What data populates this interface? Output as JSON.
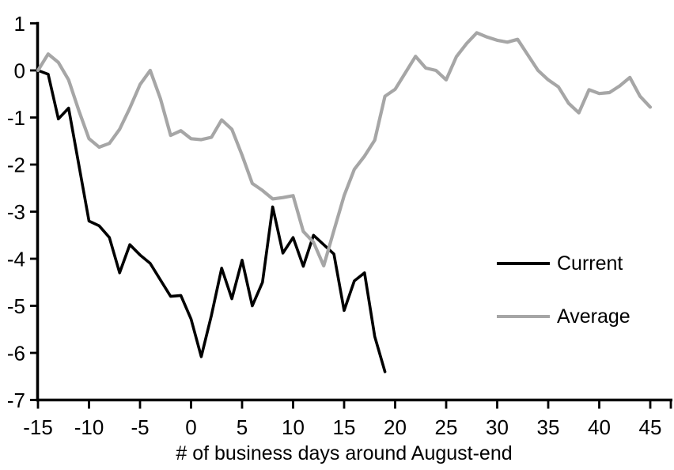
{
  "chart_data": {
    "type": "line",
    "title": "",
    "xlabel": "# of business days around August-end",
    "ylabel": "",
    "xlim": [
      -15,
      45
    ],
    "ylim": [
      -7,
      1
    ],
    "x_ticks": [
      -15,
      -10,
      -5,
      0,
      5,
      10,
      15,
      20,
      25,
      30,
      35,
      40,
      45
    ],
    "y_ticks": [
      1,
      0,
      -1,
      -2,
      -3,
      -4,
      -5,
      -6,
      -7
    ],
    "grid": false,
    "legend_position": "right-middle",
    "axis_color": "#000000",
    "series": [
      {
        "name": "Current",
        "color": "#000000",
        "stroke_width": 3.6,
        "x": [
          -15,
          -14,
          -13,
          -12,
          -11,
          -10,
          -9,
          -8,
          -7,
          -6,
          -5,
          -4,
          -3,
          -2,
          -1,
          0,
          1,
          2,
          3,
          4,
          5,
          6,
          7,
          8,
          9,
          10,
          11,
          12,
          13,
          14,
          15,
          16,
          17,
          18,
          19
        ],
        "values": [
          0,
          -0.08,
          -1.03,
          -0.8,
          -2.0,
          -3.2,
          -3.3,
          -3.55,
          -4.3,
          -3.7,
          -3.92,
          -4.1,
          -4.45,
          -4.8,
          -4.78,
          -5.28,
          -6.08,
          -5.2,
          -4.2,
          -4.85,
          -4.03,
          -5.0,
          -4.5,
          -2.9,
          -3.88,
          -3.55,
          -4.16,
          -3.5,
          -3.7,
          -3.9,
          -5.1,
          -4.47,
          -4.3,
          -5.65,
          -6.4
        ]
      },
      {
        "name": "Average",
        "color": "#A6A6A6",
        "stroke_width": 4.2,
        "x": [
          -15,
          -14,
          -13,
          -12,
          -11,
          -10,
          -9,
          -8,
          -7,
          -6,
          -5,
          -4,
          -3,
          -2,
          -1,
          0,
          1,
          2,
          3,
          4,
          5,
          6,
          7,
          8,
          9,
          10,
          11,
          12,
          13,
          14,
          15,
          16,
          17,
          18,
          19,
          20,
          21,
          22,
          23,
          24,
          25,
          26,
          27,
          28,
          29,
          30,
          31,
          32,
          33,
          34,
          35,
          36,
          37,
          38,
          39,
          40,
          41,
          42,
          43,
          44,
          45
        ],
        "values": [
          0,
          0.35,
          0.17,
          -0.2,
          -0.85,
          -1.45,
          -1.63,
          -1.55,
          -1.25,
          -0.8,
          -0.3,
          0.0,
          -0.6,
          -1.38,
          -1.28,
          -1.45,
          -1.47,
          -1.42,
          -1.05,
          -1.25,
          -1.8,
          -2.4,
          -2.55,
          -2.73,
          -2.7,
          -2.66,
          -3.42,
          -3.65,
          -4.15,
          -3.4,
          -2.66,
          -2.1,
          -1.82,
          -1.48,
          -0.55,
          -0.4,
          -0.05,
          0.3,
          0.05,
          0.0,
          -0.2,
          0.29,
          0.57,
          0.8,
          0.71,
          0.64,
          0.6,
          0.66,
          0.33,
          0.0,
          -0.2,
          -0.35,
          -0.7,
          -0.9,
          -0.41,
          -0.49,
          -0.47,
          -0.33,
          -0.15,
          -0.55,
          -0.78
        ]
      }
    ],
    "legend": {
      "items": [
        {
          "label": "Current",
          "color": "#000000"
        },
        {
          "label": "Average",
          "color": "#A6A6A6"
        }
      ]
    }
  }
}
